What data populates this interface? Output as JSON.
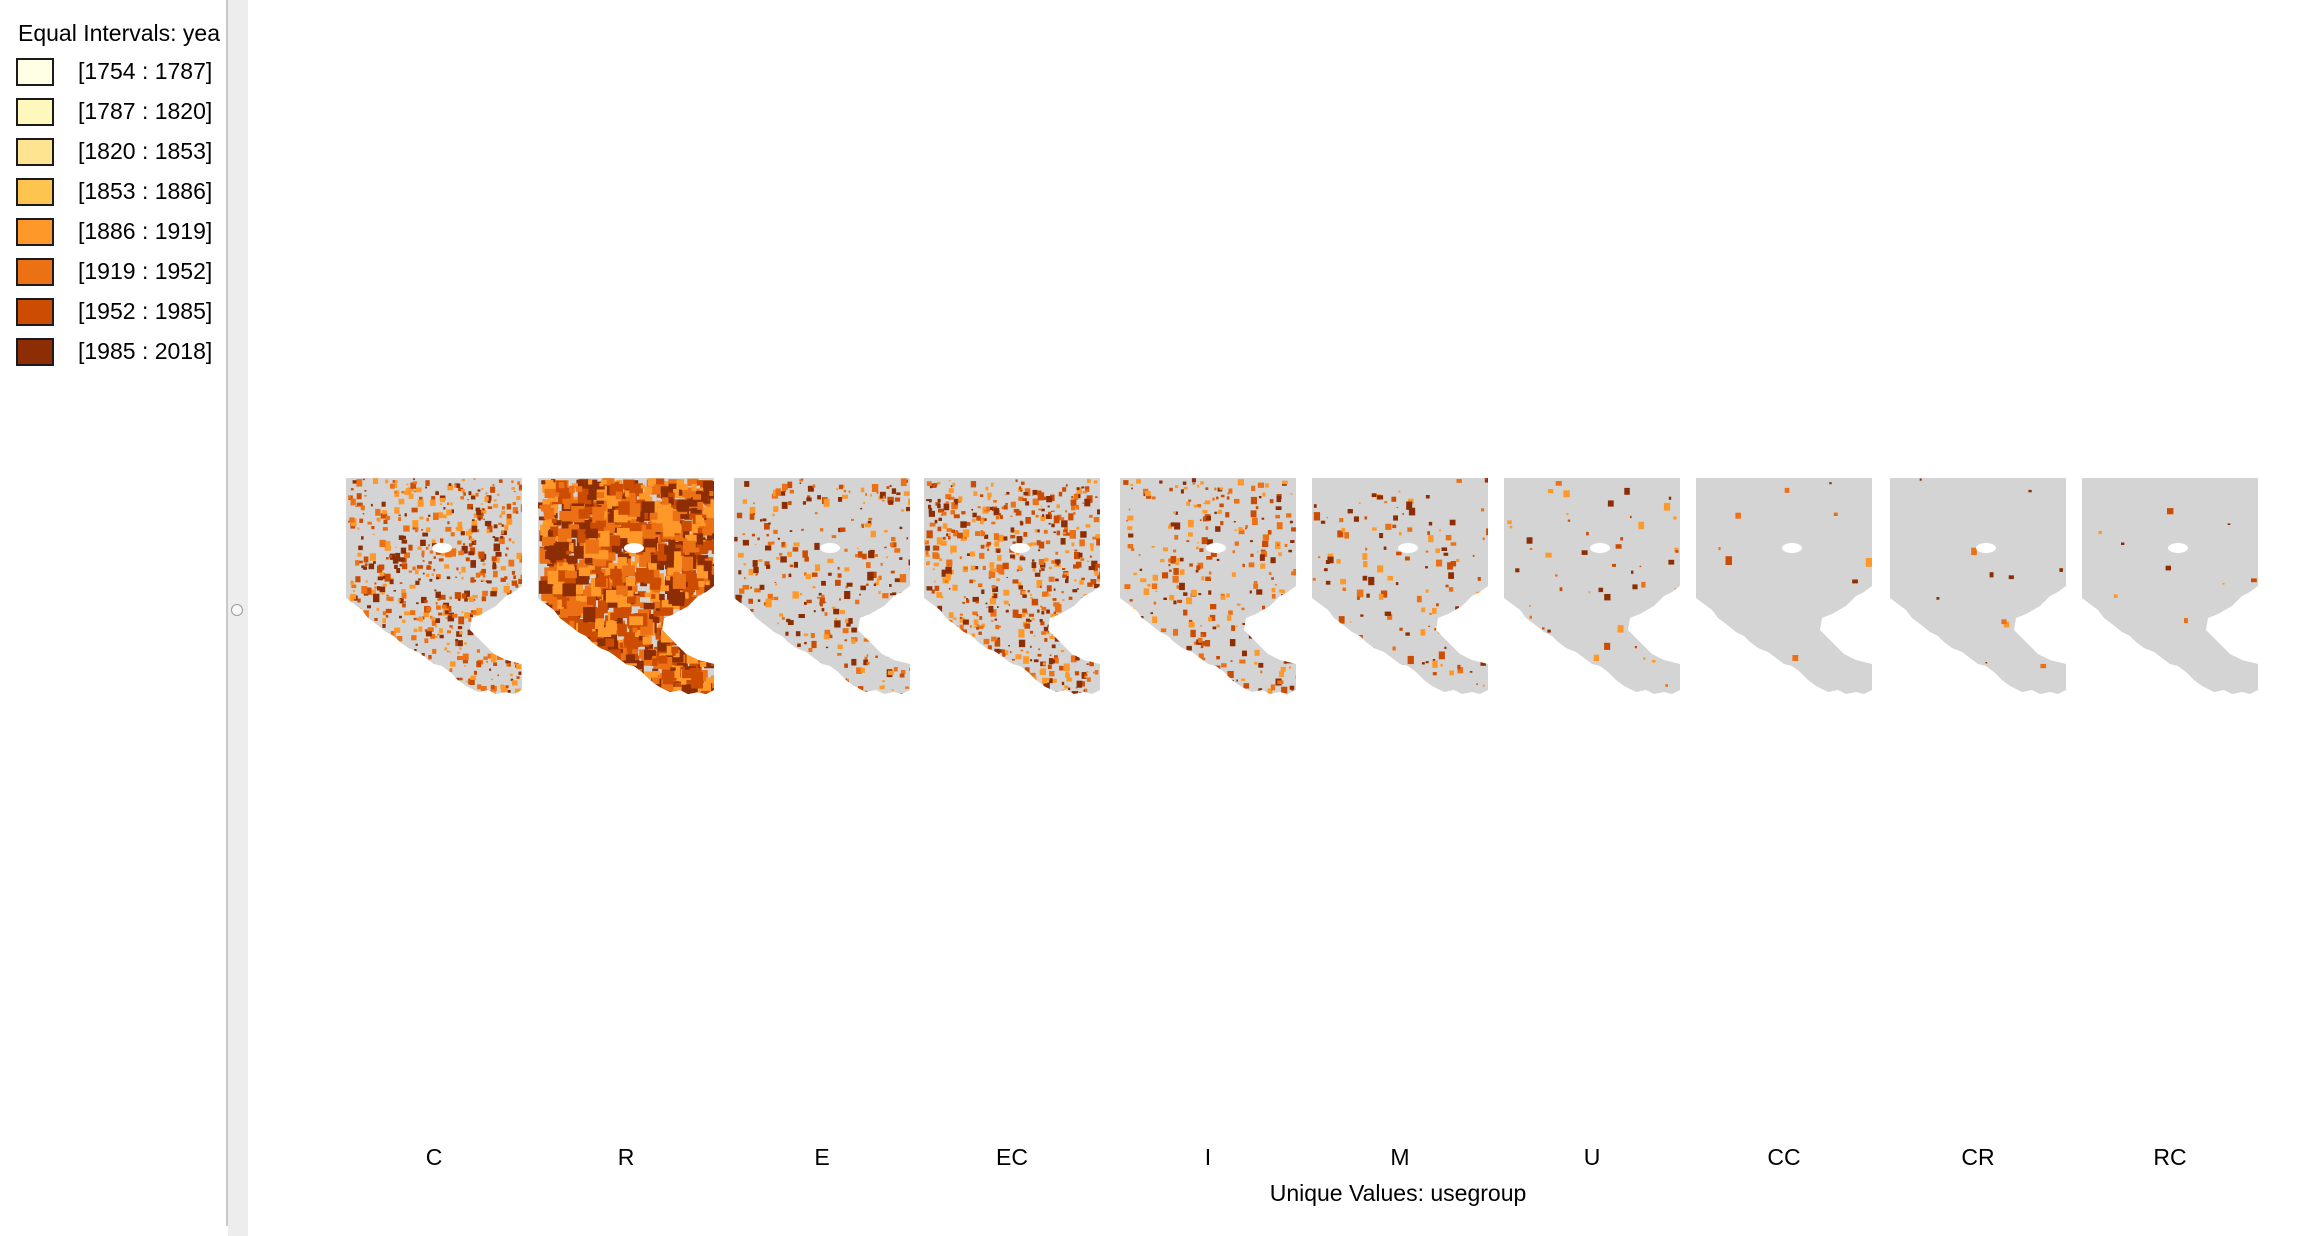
{
  "legend": {
    "title": "Equal Intervals: yea",
    "items": [
      {
        "label": "[1754 : 1787]",
        "color": "#ffffe5"
      },
      {
        "label": "[1787 : 1820]",
        "color": "#fff7bc"
      },
      {
        "label": "[1820 : 1853]",
        "color": "#fee391"
      },
      {
        "label": "[1853 : 1886]",
        "color": "#fec44f"
      },
      {
        "label": "[1886 : 1919]",
        "color": "#fe9929"
      },
      {
        "label": "[1919 : 1952]",
        "color": "#ec7014"
      },
      {
        "label": "[1952 : 1985]",
        "color": "#cc4c02"
      },
      {
        "label": "[1985 : 2018]",
        "color": "#8c2d04"
      }
    ]
  },
  "facet_axis_title": "Unique Values: usegroup",
  "facets": [
    {
      "label": "C",
      "coverage": "high"
    },
    {
      "label": "R",
      "coverage": "full"
    },
    {
      "label": "E",
      "coverage": "medium"
    },
    {
      "label": "EC",
      "coverage": "high"
    },
    {
      "label": "I",
      "coverage": "medium"
    },
    {
      "label": "M",
      "coverage": "low"
    },
    {
      "label": "U",
      "coverage": "very-low"
    },
    {
      "label": "CC",
      "coverage": "sparse"
    },
    {
      "label": "CR",
      "coverage": "sparse"
    },
    {
      "label": "RC",
      "coverage": "sparse"
    }
  ],
  "colors": {
    "base_land": "#d4d4d4",
    "background": "#ffffff",
    "panel_border": "#c9c9c9"
  }
}
